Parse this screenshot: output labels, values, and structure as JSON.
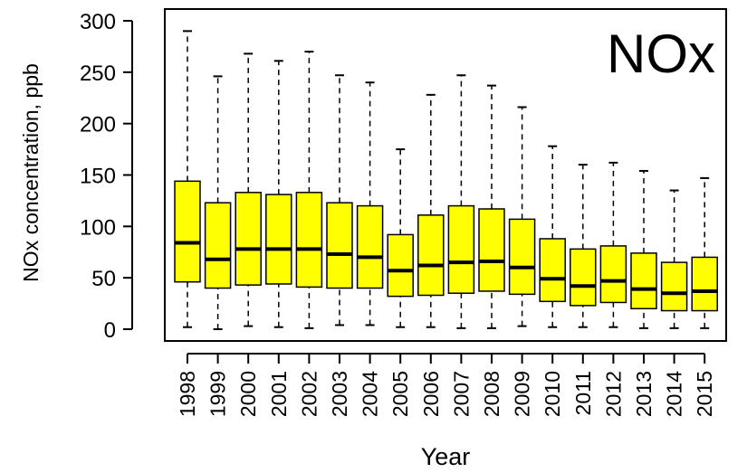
{
  "chart_data": {
    "type": "boxplot",
    "title": "NOx",
    "xlabel": "Year",
    "ylabel": "NOx concentration, ppb",
    "ylim": [
      0,
      300
    ],
    "yticks": [
      0,
      50,
      100,
      150,
      200,
      250,
      300
    ],
    "grid": false,
    "legend": "none",
    "box_color": "#ffff00",
    "categories": [
      "1998",
      "1999",
      "2000",
      "2001",
      "2002",
      "2003",
      "2004",
      "2005",
      "2006",
      "2007",
      "2008",
      "2009",
      "2010",
      "2011",
      "2012",
      "2013",
      "2014",
      "2015"
    ],
    "boxes": [
      {
        "min": 2,
        "q1": 46,
        "median": 84,
        "q3": 144,
        "max": 290
      },
      {
        "min": 0,
        "q1": 40,
        "median": 68,
        "q3": 123,
        "max": 246
      },
      {
        "min": 3,
        "q1": 43,
        "median": 78,
        "q3": 133,
        "max": 268
      },
      {
        "min": 2,
        "q1": 44,
        "median": 78,
        "q3": 131,
        "max": 261
      },
      {
        "min": 1,
        "q1": 41,
        "median": 78,
        "q3": 133,
        "max": 270
      },
      {
        "min": 4,
        "q1": 40,
        "median": 73,
        "q3": 123,
        "max": 247
      },
      {
        "min": 4,
        "q1": 40,
        "median": 70,
        "q3": 120,
        "max": 240
      },
      {
        "min": 2,
        "q1": 32,
        "median": 57,
        "q3": 92,
        "max": 175
      },
      {
        "min": 2,
        "q1": 33,
        "median": 62,
        "q3": 111,
        "max": 228
      },
      {
        "min": 1,
        "q1": 35,
        "median": 65,
        "q3": 120,
        "max": 247
      },
      {
        "min": 1,
        "q1": 37,
        "median": 66,
        "q3": 117,
        "max": 237
      },
      {
        "min": 3,
        "q1": 34,
        "median": 60,
        "q3": 107,
        "max": 216
      },
      {
        "min": 2,
        "q1": 27,
        "median": 49,
        "q3": 88,
        "max": 178
      },
      {
        "min": 2,
        "q1": 23,
        "median": 42,
        "q3": 78,
        "max": 160
      },
      {
        "min": 2,
        "q1": 26,
        "median": 47,
        "q3": 81,
        "max": 162
      },
      {
        "min": 1,
        "q1": 20,
        "median": 39,
        "q3": 74,
        "max": 154
      },
      {
        "min": 1,
        "q1": 18,
        "median": 35,
        "q3": 65,
        "max": 135
      },
      {
        "min": 1,
        "q1": 18,
        "median": 37,
        "q3": 70,
        "max": 147
      }
    ]
  }
}
